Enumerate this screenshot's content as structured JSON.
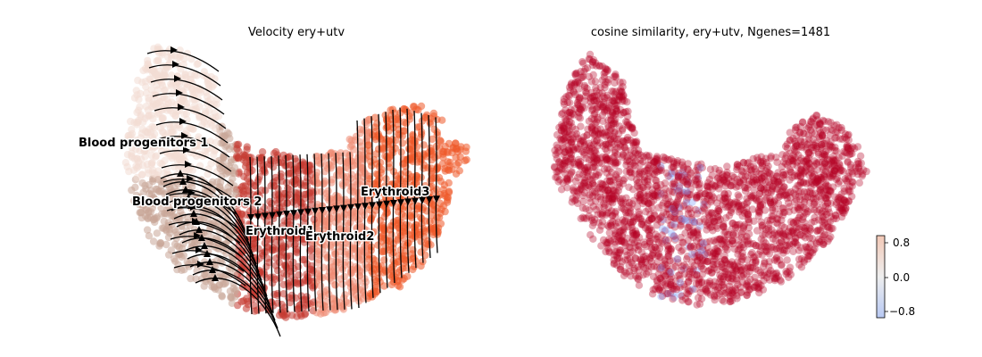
{
  "chart_data": [
    {
      "type": "scatter",
      "title": "Velocity ery+utv",
      "xlabel": "",
      "ylabel": "",
      "grid": false,
      "overlay": "velocity streamlines",
      "clusters": [
        {
          "name": "Blood progenitors 1",
          "color": "#f3dcd3"
        },
        {
          "name": "Blood progenitors 2",
          "color": "#c9a597"
        },
        {
          "name": "Erythroid1",
          "color": "#c53a32"
        },
        {
          "name": "Erythroid2",
          "color": "#ef8a73"
        },
        {
          "name": "Erythroid3",
          "color": "#ef5a2a"
        }
      ],
      "cluster_labels": [
        "Blood progenitors 1",
        "Blood progenitors 2",
        "Erythroid1",
        "Erythroid2",
        "Erythroid3"
      ]
    },
    {
      "type": "scatter",
      "title": "cosine similarity, ery+utv, Ngenes=1481",
      "xlabel": "",
      "ylabel": "",
      "grid": false,
      "colormap": "coolwarm",
      "colorbar": {
        "min": -1,
        "max": 1,
        "ticks": [
          0.8,
          0.0,
          -0.8
        ],
        "tick_labels": [
          "0.8",
          "0.0",
          "−0.8"
        ]
      },
      "dominant_value_color": "#b40426",
      "minority_value_color": "#7b9ff9"
    }
  ]
}
